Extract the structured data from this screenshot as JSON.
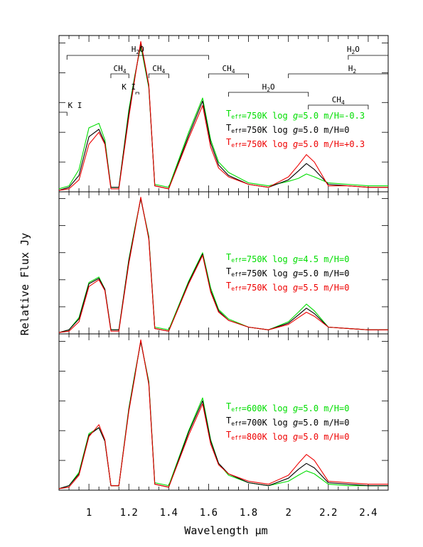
{
  "chart_data": [
    {
      "type": "line",
      "panel": "top",
      "xlim": [
        0.85,
        2.5
      ],
      "ylim": [
        0,
        1.05
      ],
      "xlabel": "Wavelength μm",
      "ylabel": "Relative Flux Jy",
      "annotations": [
        "K I",
        "K I",
        "H2O",
        "CH4",
        "CH4",
        "CH4",
        "H2O",
        "CH4",
        "H2O",
        "H2"
      ],
      "series": [
        {
          "color": "#00dd00",
          "teff": "750K",
          "logg": "5.0",
          "mh": "-0.3",
          "x": [
            0.85,
            0.9,
            0.95,
            1.0,
            1.05,
            1.08,
            1.11,
            1.15,
            1.2,
            1.23,
            1.26,
            1.3,
            1.33,
            1.4,
            1.5,
            1.57,
            1.61,
            1.65,
            1.7,
            1.8,
            1.9,
            2.0,
            2.05,
            2.09,
            2.13,
            2.2,
            2.3,
            2.4,
            2.5
          ],
          "y": [
            0.02,
            0.04,
            0.15,
            0.43,
            0.46,
            0.35,
            0.03,
            0.03,
            0.55,
            0.78,
            0.98,
            0.7,
            0.05,
            0.03,
            0.4,
            0.63,
            0.35,
            0.2,
            0.13,
            0.06,
            0.04,
            0.07,
            0.09,
            0.12,
            0.1,
            0.06,
            0.05,
            0.04,
            0.04
          ]
        },
        {
          "color": "#000000",
          "teff": "750K",
          "logg": "5.0",
          "mh": "0",
          "x": [
            0.85,
            0.9,
            0.95,
            1.0,
            1.05,
            1.08,
            1.11,
            1.15,
            1.2,
            1.23,
            1.26,
            1.3,
            1.33,
            1.4,
            1.5,
            1.57,
            1.61,
            1.65,
            1.7,
            1.8,
            1.9,
            2.0,
            2.05,
            2.09,
            2.13,
            2.2,
            2.3,
            2.4,
            2.5
          ],
          "y": [
            0.01,
            0.03,
            0.11,
            0.37,
            0.42,
            0.33,
            0.03,
            0.03,
            0.53,
            0.77,
            1.0,
            0.71,
            0.04,
            0.02,
            0.38,
            0.61,
            0.33,
            0.18,
            0.11,
            0.05,
            0.03,
            0.08,
            0.14,
            0.19,
            0.15,
            0.05,
            0.04,
            0.03,
            0.03
          ]
        },
        {
          "color": "#ee0000",
          "teff": "750K",
          "logg": "5.0",
          "mh": "+0.3",
          "x": [
            0.85,
            0.9,
            0.95,
            1.0,
            1.05,
            1.08,
            1.11,
            1.15,
            1.2,
            1.23,
            1.26,
            1.3,
            1.33,
            1.4,
            1.5,
            1.57,
            1.61,
            1.65,
            1.7,
            1.8,
            1.9,
            2.0,
            2.05,
            2.09,
            2.13,
            2.2,
            2.3,
            2.4,
            2.5
          ],
          "y": [
            0.01,
            0.02,
            0.08,
            0.32,
            0.4,
            0.32,
            0.02,
            0.02,
            0.5,
            0.76,
            1.01,
            0.72,
            0.04,
            0.02,
            0.36,
            0.58,
            0.3,
            0.16,
            0.1,
            0.05,
            0.03,
            0.1,
            0.18,
            0.25,
            0.2,
            0.04,
            0.04,
            0.03,
            0.03
          ]
        }
      ]
    },
    {
      "type": "line",
      "panel": "middle",
      "xlim": [
        0.85,
        2.5
      ],
      "ylim": [
        0,
        1.05
      ],
      "series": [
        {
          "color": "#00dd00",
          "teff": "750K",
          "logg": "4.5",
          "mh": "0",
          "x": [
            0.85,
            0.9,
            0.95,
            1.0,
            1.05,
            1.08,
            1.11,
            1.15,
            1.2,
            1.23,
            1.26,
            1.3,
            1.33,
            1.4,
            1.5,
            1.57,
            1.61,
            1.65,
            1.7,
            1.8,
            1.9,
            2.0,
            2.05,
            2.09,
            2.13,
            2.2,
            2.3,
            2.4,
            2.5
          ],
          "y": [
            0.01,
            0.03,
            0.12,
            0.38,
            0.42,
            0.33,
            0.03,
            0.03,
            0.55,
            0.78,
            1.0,
            0.72,
            0.05,
            0.03,
            0.39,
            0.6,
            0.34,
            0.18,
            0.11,
            0.05,
            0.03,
            0.09,
            0.16,
            0.22,
            0.17,
            0.05,
            0.04,
            0.03,
            0.03
          ]
        },
        {
          "color": "#000000",
          "teff": "750K",
          "logg": "5.0",
          "mh": "0",
          "x": [
            0.85,
            0.9,
            0.95,
            1.0,
            1.05,
            1.08,
            1.11,
            1.15,
            1.2,
            1.23,
            1.26,
            1.3,
            1.33,
            1.4,
            1.5,
            1.57,
            1.61,
            1.65,
            1.7,
            1.8,
            1.9,
            2.0,
            2.05,
            2.09,
            2.13,
            2.2,
            2.3,
            2.4,
            2.5
          ],
          "y": [
            0.01,
            0.03,
            0.11,
            0.37,
            0.41,
            0.33,
            0.03,
            0.03,
            0.54,
            0.77,
            1.0,
            0.71,
            0.04,
            0.02,
            0.38,
            0.59,
            0.32,
            0.17,
            0.1,
            0.05,
            0.03,
            0.08,
            0.14,
            0.19,
            0.15,
            0.05,
            0.04,
            0.03,
            0.03
          ]
        },
        {
          "color": "#ee0000",
          "teff": "750K",
          "logg": "5.5",
          "mh": "0",
          "x": [
            0.85,
            0.9,
            0.95,
            1.0,
            1.05,
            1.08,
            1.11,
            1.15,
            1.2,
            1.23,
            1.26,
            1.3,
            1.33,
            1.4,
            1.5,
            1.57,
            1.61,
            1.65,
            1.7,
            1.8,
            1.9,
            2.0,
            2.05,
            2.09,
            2.13,
            2.2,
            2.3,
            2.4,
            2.5
          ],
          "y": [
            0.01,
            0.02,
            0.09,
            0.35,
            0.4,
            0.32,
            0.02,
            0.02,
            0.52,
            0.76,
            1.01,
            0.7,
            0.04,
            0.02,
            0.37,
            0.58,
            0.31,
            0.16,
            0.1,
            0.05,
            0.03,
            0.07,
            0.12,
            0.16,
            0.13,
            0.05,
            0.04,
            0.03,
            0.03
          ]
        }
      ]
    },
    {
      "type": "line",
      "panel": "bottom",
      "xlim": [
        0.85,
        2.5
      ],
      "ylim": [
        0,
        1.05
      ],
      "series": [
        {
          "color": "#00dd00",
          "teff": "600K",
          "logg": "5.0",
          "mh": "0",
          "x": [
            0.85,
            0.9,
            0.95,
            1.0,
            1.05,
            1.08,
            1.11,
            1.15,
            1.2,
            1.23,
            1.26,
            1.3,
            1.33,
            1.4,
            1.5,
            1.57,
            1.61,
            1.65,
            1.7,
            1.8,
            1.9,
            2.0,
            2.05,
            2.09,
            2.13,
            2.2,
            2.3,
            2.4,
            2.5
          ],
          "y": [
            0.01,
            0.03,
            0.12,
            0.38,
            0.42,
            0.33,
            0.03,
            0.03,
            0.55,
            0.78,
            1.0,
            0.73,
            0.05,
            0.03,
            0.4,
            0.62,
            0.34,
            0.18,
            0.1,
            0.05,
            0.03,
            0.06,
            0.1,
            0.13,
            0.11,
            0.04,
            0.03,
            0.03,
            0.03
          ]
        },
        {
          "color": "#000000",
          "teff": "700K",
          "logg": "5.0",
          "mh": "0",
          "x": [
            0.85,
            0.9,
            0.95,
            1.0,
            1.05,
            1.08,
            1.11,
            1.15,
            1.2,
            1.23,
            1.26,
            1.3,
            1.33,
            1.4,
            1.5,
            1.57,
            1.61,
            1.65,
            1.7,
            1.8,
            1.9,
            2.0,
            2.05,
            2.09,
            2.13,
            2.2,
            2.3,
            2.4,
            2.5
          ],
          "y": [
            0.01,
            0.03,
            0.11,
            0.37,
            0.42,
            0.33,
            0.03,
            0.03,
            0.54,
            0.77,
            1.0,
            0.72,
            0.04,
            0.02,
            0.39,
            0.6,
            0.33,
            0.18,
            0.11,
            0.05,
            0.03,
            0.08,
            0.14,
            0.18,
            0.15,
            0.05,
            0.04,
            0.03,
            0.03
          ]
        },
        {
          "color": "#ee0000",
          "teff": "800K",
          "logg": "5.0",
          "mh": "0",
          "x": [
            0.85,
            0.9,
            0.95,
            1.0,
            1.05,
            1.08,
            1.11,
            1.15,
            1.2,
            1.23,
            1.26,
            1.3,
            1.33,
            1.4,
            1.5,
            1.57,
            1.61,
            1.65,
            1.7,
            1.8,
            1.9,
            2.0,
            2.05,
            2.09,
            2.13,
            2.2,
            2.3,
            2.4,
            2.5
          ],
          "y": [
            0.01,
            0.02,
            0.1,
            0.36,
            0.44,
            0.34,
            0.03,
            0.03,
            0.53,
            0.76,
            1.01,
            0.71,
            0.04,
            0.02,
            0.37,
            0.58,
            0.31,
            0.17,
            0.11,
            0.06,
            0.04,
            0.1,
            0.18,
            0.24,
            0.2,
            0.06,
            0.05,
            0.04,
            0.04
          ]
        }
      ]
    }
  ],
  "x_ticks": [
    "1",
    "1.2",
    "1.4",
    "1.6",
    "1.8",
    "2",
    "2.2",
    "2.4"
  ],
  "x_tick_values": [
    1.0,
    1.2,
    1.4,
    1.6,
    1.8,
    2.0,
    2.2,
    2.4
  ],
  "xlabel": "Wavelength μm",
  "ylabel": "Relative Flux Jy",
  "legend_text": {
    "t": "T",
    "eff": "eff",
    "eq": "=",
    "log": " log ",
    "g": "g",
    "mh": " m/H=",
    "k": "K"
  },
  "features": {
    "h2o_1": "H",
    "h2o_1_sub": "2",
    "h2o_1_o": "O",
    "ch4_1": "CH",
    "ch4_1_sub": "4",
    "ki_2": "K I",
    "ch4_2": "CH",
    "ch4_2_sub": "4",
    "ki_1": "K I",
    "ch4_3": "CH",
    "ch4_3_sub": "4",
    "h2o_2": "H",
    "h2o_2_sub": "2",
    "h2o_2_o": "O",
    "ch4_4": "CH",
    "ch4_4_sub": "4",
    "h2o_3": "H",
    "h2o_3_sub": "2",
    "h2o_3_o": "O",
    "h2": "H",
    "h2_sub": "2"
  }
}
